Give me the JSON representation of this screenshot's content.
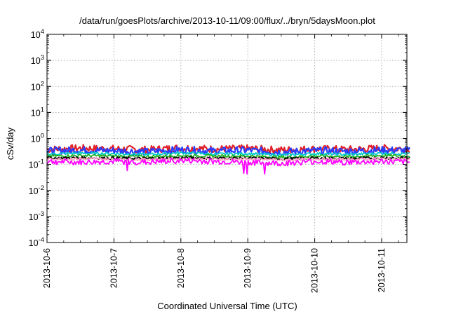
{
  "chart_data": {
    "type": "line",
    "title": "/data/run/goesPlots/archive/2013-10-11/09:00/flux/../bryn/5daysMoon.plot",
    "xlabel": "Coordinated Universal Time (UTC)",
    "ylabel": "cSv/day",
    "y_scale": "log",
    "ylim": [
      0.0001,
      10000
    ],
    "xlim": [
      "2013-10-06 00:00",
      "2013-10-11 10:00"
    ],
    "grid": true,
    "legend": "none",
    "x_ticks": [
      "2013-10-6",
      "2013-10-7",
      "2013-10-8",
      "2013-10-9",
      "2013-10-10",
      "2013-10-11"
    ],
    "y_ticks": [
      {
        "base": "10",
        "exp": "-4"
      },
      {
        "base": "10",
        "exp": "-3"
      },
      {
        "base": "10",
        "exp": "-2"
      },
      {
        "base": "10",
        "exp": "-1"
      },
      {
        "base": "10",
        "exp": "0"
      },
      {
        "base": "10",
        "exp": "1"
      },
      {
        "base": "10",
        "exp": "2"
      },
      {
        "base": "10",
        "exp": "3"
      },
      {
        "base": "10",
        "exp": "4"
      }
    ],
    "x_days": [
      0,
      0.5,
      1,
      1.5,
      2,
      2.5,
      3,
      3.5,
      4,
      4.5,
      5,
      5.42
    ],
    "series": [
      {
        "color": "#e0202a",
        "values": [
          0.38,
          0.42,
          0.4,
          0.37,
          0.44,
          0.39,
          0.41,
          0.36,
          0.4,
          0.38,
          0.42,
          0.4
        ]
      },
      {
        "color": "#2a3cff",
        "values": [
          0.33,
          0.36,
          0.34,
          0.31,
          0.37,
          0.33,
          0.35,
          0.3,
          0.34,
          0.32,
          0.36,
          0.34
        ]
      },
      {
        "color": "#00c8c8",
        "values": [
          0.25,
          0.27,
          0.26,
          0.24,
          0.28,
          0.25,
          0.26,
          0.23,
          0.26,
          0.24,
          0.27,
          0.26
        ]
      },
      {
        "color": "#20b020",
        "values": [
          0.21,
          0.22,
          0.21,
          0.2,
          0.22,
          0.21,
          0.21,
          0.19,
          0.21,
          0.2,
          0.22,
          0.21
        ]
      },
      {
        "color": "#000000",
        "values": [
          0.175,
          0.18,
          0.175,
          0.17,
          0.18,
          0.175,
          0.175,
          0.165,
          0.175,
          0.17,
          0.18,
          0.175
        ]
      },
      {
        "color": "#ff9ec4",
        "values": [
          0.16,
          0.165,
          0.16,
          0.155,
          0.165,
          0.16,
          0.16,
          0.15,
          0.16,
          0.155,
          0.165,
          0.16
        ]
      },
      {
        "color": "#ff00ff",
        "values": [
          0.13,
          0.12,
          0.13,
          0.12,
          0.14,
          0.13,
          0.12,
          0.11,
          0.13,
          0.12,
          0.13,
          0.12
        ]
      }
    ]
  }
}
